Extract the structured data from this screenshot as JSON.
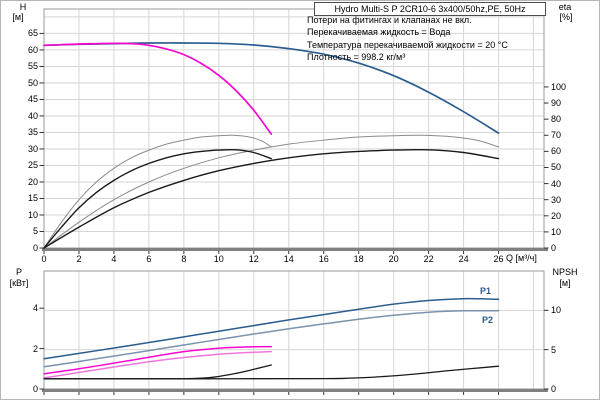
{
  "header": {
    "title": "Hydro Multi-S P 2CR10-6 3x400/50hz,PE, 50Hz"
  },
  "info_lines": [
    "Потери на фитингах и клапанах не вкл.",
    "Перекачиваемая жидкость = Вода",
    "Температура перекачиваемой жидкости = 20 °C",
    "Плотность = 998.2 кг/м³"
  ],
  "axis_titles": {
    "top_left": "H",
    "top_left_unit": "[м]",
    "top_right": "eta",
    "top_right_unit": "[%]",
    "bottom_left": "P",
    "bottom_left_unit": "[кВт]",
    "bottom_right": "NPSH",
    "bottom_right_unit": "[м]",
    "x_label": "Q [м³/ч]"
  },
  "curve_labels": {
    "p1": "P1",
    "p2": "P2"
  },
  "colors": {
    "blue": "#2b5c8f",
    "blue_grey": "#7a92ad",
    "magenta": "#f408cf",
    "magenta_light": "#ee77dd",
    "grey_curve": "#8a8a8a",
    "black_curve": "#1a1a1a",
    "grid": "#d6d6d6",
    "frame": "#9a9a9a",
    "axis_heavy": "#808080",
    "text": "#000000"
  },
  "chart_data": [
    {
      "type": "line",
      "x_axis": {
        "label": "Q [м³/ч]",
        "ticks": [
          0,
          2,
          4,
          6,
          8,
          10,
          12,
          14,
          16,
          18,
          20,
          22,
          24,
          26
        ],
        "range": [
          0,
          28.6
        ]
      },
      "y_left": {
        "label": "H [м]",
        "ticks": [
          0,
          5,
          10,
          15,
          20,
          25,
          30,
          35,
          40,
          45,
          50,
          55,
          60,
          65
        ],
        "range": [
          0,
          72.4
        ]
      },
      "y_right": {
        "label": "eta [%]",
        "ticks": [
          0,
          10,
          20,
          30,
          40,
          50,
          60,
          70,
          80,
          90,
          100
        ],
        "range": [
          0,
          148.4
        ]
      },
      "legend": "none",
      "grid": true,
      "series": [
        {
          "name": "eta-2-pumps-thin",
          "axis": "right",
          "color_key": "grey_curve",
          "width": 1,
          "points": [
            [
              0,
              0
            ],
            [
              2,
              16
            ],
            [
              4,
              30
            ],
            [
              6,
              41
            ],
            [
              8,
              49.5
            ],
            [
              10,
              56
            ],
            [
              12,
              60.8
            ],
            [
              14,
              64.5
            ],
            [
              16,
              67
            ],
            [
              18,
              68.9
            ],
            [
              20,
              69.7
            ],
            [
              21.6,
              70
            ],
            [
              23.4,
              69
            ],
            [
              24.8,
              66.8
            ],
            [
              26,
              62.8
            ]
          ]
        },
        {
          "name": "eta-1-pump-thin",
          "axis": "right",
          "color_key": "grey_curve",
          "width": 1,
          "points": [
            [
              0,
              0
            ],
            [
              1,
              16
            ],
            [
              2,
              30
            ],
            [
              3,
              41
            ],
            [
              4,
              49.5
            ],
            [
              5,
              56
            ],
            [
              6,
              60.8
            ],
            [
              7,
              64.5
            ],
            [
              8,
              67
            ],
            [
              9,
              68.9
            ],
            [
              10,
              69.7
            ],
            [
              10.8,
              70
            ],
            [
              11.7,
              69
            ],
            [
              12.4,
              66.8
            ],
            [
              13,
              62.8
            ]
          ]
        },
        {
          "name": "eta-2-pumps-bold",
          "axis": "right",
          "color_key": "black_curve",
          "width": 1.4,
          "points": [
            [
              0,
              0
            ],
            [
              2,
              13
            ],
            [
              4,
              25
            ],
            [
              6,
              34.5
            ],
            [
              8,
              42
            ],
            [
              10,
              48
            ],
            [
              12,
              52.5
            ],
            [
              14,
              56
            ],
            [
              16,
              58.5
            ],
            [
              18,
              60
            ],
            [
              20,
              60.8
            ],
            [
              22,
              61
            ],
            [
              24,
              59.3
            ],
            [
              26,
              55.5
            ]
          ]
        },
        {
          "name": "eta-1-pump-bold",
          "axis": "right",
          "color_key": "black_curve",
          "width": 1.4,
          "points": [
            [
              0,
              0
            ],
            [
              1,
              13
            ],
            [
              2,
              25
            ],
            [
              3,
              34.5
            ],
            [
              4,
              42
            ],
            [
              5,
              48
            ],
            [
              6,
              52.5
            ],
            [
              7,
              56
            ],
            [
              8,
              58.5
            ],
            [
              9,
              60
            ],
            [
              10,
              60.8
            ],
            [
              11,
              61
            ],
            [
              12,
              59.3
            ],
            [
              13,
              55.5
            ]
          ]
        },
        {
          "name": "head-2-pumps",
          "axis": "left",
          "color_key": "blue",
          "width": 1.7,
          "points": [
            [
              0,
              61.4
            ],
            [
              2,
              61.7
            ],
            [
              4,
              61.9
            ],
            [
              6,
              62.1
            ],
            [
              8,
              62.1
            ],
            [
              10,
              62.0
            ],
            [
              12,
              61.5
            ],
            [
              14,
              60.4
            ],
            [
              16,
              58.7
            ],
            [
              18,
              56.0
            ],
            [
              20,
              52.2
            ],
            [
              22,
              47.2
            ],
            [
              24,
              41.3
            ],
            [
              26,
              34.8
            ]
          ]
        },
        {
          "name": "head-1-pump",
          "axis": "left",
          "color_key": "magenta",
          "width": 1.7,
          "points": [
            [
              0,
              61.4
            ],
            [
              1,
              61.6
            ],
            [
              2,
              61.8
            ],
            [
              3,
              61.9
            ],
            [
              4,
              62.0
            ],
            [
              5,
              61.9
            ],
            [
              6,
              61.4
            ],
            [
              7,
              60.3
            ],
            [
              8,
              58.6
            ],
            [
              9,
              55.9
            ],
            [
              10,
              52.3
            ],
            [
              11,
              47.6
            ],
            [
              12,
              41.7
            ],
            [
              13,
              34.5
            ]
          ]
        }
      ]
    },
    {
      "type": "line",
      "x_axis": {
        "label": "",
        "ticks": [],
        "range": [
          0,
          28.6
        ]
      },
      "y_left": {
        "label": "P [кВт]",
        "ticks": [
          0,
          2,
          4
        ],
        "range": [
          0,
          5.84
        ]
      },
      "y_right": {
        "label": "NPSH [м]",
        "ticks": [
          0,
          5,
          10
        ],
        "range": [
          0,
          15
        ]
      },
      "legend": "P1 / P2 inline labels",
      "grid": true,
      "series": [
        {
          "name": "power-p2-2-pumps",
          "axis": "left",
          "color_key": "blue_grey",
          "width": 1.5,
          "points": [
            [
              0,
              1.1
            ],
            [
              2,
              1.36
            ],
            [
              4,
              1.63
            ],
            [
              6,
              1.9
            ],
            [
              8,
              2.18
            ],
            [
              10,
              2.45
            ],
            [
              12,
              2.72
            ],
            [
              14,
              2.98
            ],
            [
              16,
              3.22
            ],
            [
              18,
              3.45
            ],
            [
              20,
              3.65
            ],
            [
              22,
              3.8
            ],
            [
              24,
              3.87
            ],
            [
              26,
              3.87
            ]
          ]
        },
        {
          "name": "power-p1-2-pumps",
          "axis": "left",
          "color_key": "blue",
          "width": 1.5,
          "points": [
            [
              0,
              1.5
            ],
            [
              2,
              1.76
            ],
            [
              4,
              2.03
            ],
            [
              6,
              2.3
            ],
            [
              8,
              2.58
            ],
            [
              10,
              2.86
            ],
            [
              12,
              3.14
            ],
            [
              14,
              3.42
            ],
            [
              16,
              3.68
            ],
            [
              18,
              3.95
            ],
            [
              20,
              4.2
            ],
            [
              22,
              4.38
            ],
            [
              24,
              4.47
            ],
            [
              26,
              4.44
            ]
          ]
        },
        {
          "name": "power-p2-1-pump",
          "axis": "left",
          "color_key": "magenta_light",
          "width": 1.5,
          "points": [
            [
              0,
              0.55
            ],
            [
              2,
              0.82
            ],
            [
              4,
              1.09
            ],
            [
              6,
              1.35
            ],
            [
              8,
              1.56
            ],
            [
              10,
              1.72
            ],
            [
              11.5,
              1.8
            ],
            [
              13,
              1.85
            ]
          ]
        },
        {
          "name": "power-p1-1-pump",
          "axis": "left",
          "color_key": "magenta",
          "width": 1.5,
          "points": [
            [
              0,
              0.75
            ],
            [
              2,
              1.0
            ],
            [
              4,
              1.28
            ],
            [
              6,
              1.57
            ],
            [
              8,
              1.85
            ],
            [
              10,
              2.02
            ],
            [
              11.5,
              2.08
            ],
            [
              13,
              2.1
            ]
          ]
        },
        {
          "name": "npsh-2-pumps",
          "axis": "right",
          "color_key": "black_curve",
          "width": 1.3,
          "points": [
            [
              0,
              1.3
            ],
            [
              8,
              1.3
            ],
            [
              16,
              1.32
            ],
            [
              17.5,
              1.38
            ],
            [
              19,
              1.52
            ],
            [
              21,
              1.85
            ],
            [
              23,
              2.3
            ],
            [
              24.5,
              2.6
            ],
            [
              26,
              2.9
            ]
          ]
        },
        {
          "name": "npsh-1-pump",
          "axis": "right",
          "color_key": "black_curve",
          "width": 1.3,
          "points": [
            [
              0,
              1.3
            ],
            [
              6,
              1.3
            ],
            [
              8.5,
              1.33
            ],
            [
              9.7,
              1.5
            ],
            [
              11,
              2.0
            ],
            [
              12,
              2.5
            ],
            [
              13,
              3.05
            ]
          ]
        }
      ]
    }
  ]
}
